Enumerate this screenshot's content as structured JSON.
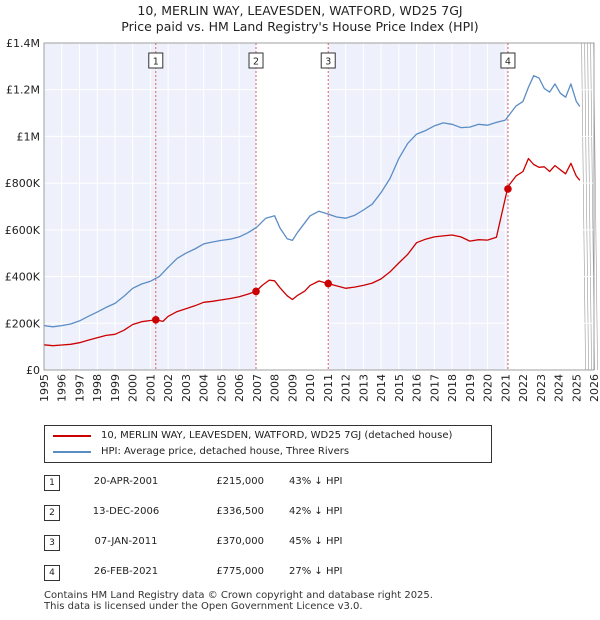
{
  "chart_data": {
    "type": "line",
    "title": "10, MERLIN WAY, LEAVESDEN, WATFORD, WD25 7GJ",
    "subtitle": "Price paid vs. HM Land Registry's House Price Index (HPI)",
    "xlabel": "",
    "ylabel": "",
    "xlim": [
      1995,
      2026
    ],
    "ylim": [
      0,
      1400000
    ],
    "y_ticks": [
      0,
      200000,
      400000,
      600000,
      800000,
      1000000,
      1200000,
      1400000
    ],
    "y_tick_labels": [
      "£0",
      "£200K",
      "£400K",
      "£600K",
      "£800K",
      "£1M",
      "£1.2M",
      "£1.4M"
    ],
    "x_ticks": [
      "1995",
      "1996",
      "1997",
      "1998",
      "1999",
      "2000",
      "2001",
      "2002",
      "2003",
      "2004",
      "2005",
      "2006",
      "2007",
      "2008",
      "2009",
      "2010",
      "2011",
      "2012",
      "2013",
      "2014",
      "2015",
      "2016",
      "2017",
      "2018",
      "2019",
      "2020",
      "2021",
      "2022",
      "2023",
      "2024",
      "2025",
      "2026"
    ],
    "grid": true,
    "series": [
      {
        "name": "10, MERLIN WAY, LEAVESDEN, WATFORD, WD25 7GJ (detached house)",
        "color": "#cc0000",
        "x": [
          1995,
          1995.5,
          1996,
          1996.5,
          1997,
          1997.5,
          1998,
          1998.5,
          1999,
          1999.5,
          2000,
          2000.5,
          2001,
          2001.3,
          2001.7,
          2002,
          2002.5,
          2003,
          2003.5,
          2004,
          2004.5,
          2005,
          2005.5,
          2006,
          2006.5,
          2006.95,
          2007.3,
          2007.7,
          2008,
          2008.3,
          2008.7,
          2009,
          2009.3,
          2009.7,
          2010,
          2010.5,
          2011.02,
          2011.5,
          2012,
          2012.5,
          2013,
          2013.5,
          2014,
          2014.5,
          2015,
          2015.5,
          2016,
          2016.5,
          2017,
          2017.5,
          2018,
          2018.5,
          2019,
          2019.5,
          2020,
          2020.5,
          2021.12,
          2021.2,
          2021.6,
          2022,
          2022.3,
          2022.6,
          2022.9,
          2023.2,
          2023.5,
          2023.8,
          2024.1,
          2024.4,
          2024.7,
          2025,
          2025.2
        ],
        "values": [
          108000,
          104000,
          107000,
          110000,
          117000,
          128000,
          138000,
          148000,
          153000,
          170000,
          195000,
          207000,
          212000,
          215000,
          208000,
          230000,
          250000,
          262000,
          275000,
          290000,
          294000,
          300000,
          306000,
          314000,
          325000,
          336500,
          362000,
          385000,
          382000,
          352000,
          318000,
          302000,
          320000,
          338000,
          362000,
          381000,
          370000,
          360000,
          350000,
          355000,
          362000,
          372000,
          390000,
          420000,
          458000,
          495000,
          545000,
          560000,
          570000,
          574000,
          578000,
          570000,
          552000,
          558000,
          556000,
          568000,
          775000,
          790000,
          830000,
          850000,
          905000,
          880000,
          868000,
          870000,
          850000,
          875000,
          857000,
          840000,
          885000,
          830000,
          812000
        ]
      },
      {
        "name": "HPI: Average price, detached house, Three Rivers",
        "color": "#5b8dc5",
        "x": [
          1995,
          1995.5,
          1996,
          1996.5,
          1997,
          1997.5,
          1998,
          1998.5,
          1999,
          1999.5,
          2000,
          2000.5,
          2001,
          2001.5,
          2002,
          2002.5,
          2003,
          2003.5,
          2004,
          2004.5,
          2005,
          2005.5,
          2006,
          2006.5,
          2007,
          2007.5,
          2008,
          2008.3,
          2008.7,
          2009,
          2009.3,
          2009.7,
          2010,
          2010.5,
          2011,
          2011.5,
          2012,
          2012.5,
          2013,
          2013.5,
          2014,
          2014.5,
          2015,
          2015.5,
          2016,
          2016.5,
          2017,
          2017.5,
          2018,
          2018.5,
          2019,
          2019.5,
          2020,
          2020.5,
          2021,
          2021.3,
          2021.6,
          2022,
          2022.3,
          2022.6,
          2022.9,
          2023.2,
          2023.5,
          2023.8,
          2024.1,
          2024.4,
          2024.7,
          2025,
          2025.2
        ],
        "values": [
          190000,
          185000,
          190000,
          197000,
          210000,
          230000,
          248000,
          268000,
          285000,
          315000,
          350000,
          368000,
          380000,
          400000,
          440000,
          478000,
          500000,
          518000,
          540000,
          548000,
          555000,
          560000,
          570000,
          588000,
          612000,
          650000,
          660000,
          608000,
          562000,
          555000,
          590000,
          630000,
          660000,
          680000,
          668000,
          655000,
          650000,
          662000,
          685000,
          710000,
          760000,
          820000,
          905000,
          970000,
          1010000,
          1025000,
          1045000,
          1058000,
          1052000,
          1038000,
          1040000,
          1052000,
          1048000,
          1060000,
          1070000,
          1100000,
          1130000,
          1150000,
          1210000,
          1260000,
          1250000,
          1205000,
          1190000,
          1225000,
          1185000,
          1168000,
          1225000,
          1150000,
          1128000
        ]
      }
    ],
    "transactions": [
      {
        "id": "1",
        "x": 2001.3,
        "value": 215000
      },
      {
        "id": "2",
        "x": 2006.95,
        "value": 336500
      },
      {
        "id": "3",
        "x": 2011.02,
        "value": 370000
      },
      {
        "id": "4",
        "x": 2021.15,
        "value": 775000
      }
    ]
  },
  "legend": {
    "property": "10, MERLIN WAY, LEAVESDEN, WATFORD, WD25 7GJ (detached house)",
    "hpi": "HPI: Average price, detached house, Three Rivers"
  },
  "table": [
    {
      "num": "1",
      "date": "20-APR-2001",
      "price": "£215,000",
      "hpi": "43% ↓ HPI"
    },
    {
      "num": "2",
      "date": "13-DEC-2006",
      "price": "£336,500",
      "hpi": "42% ↓ HPI"
    },
    {
      "num": "3",
      "date": "07-JAN-2011",
      "price": "£370,000",
      "hpi": "45% ↓ HPI"
    },
    {
      "num": "4",
      "date": "26-FEB-2021",
      "price": "£775,000",
      "hpi": "27% ↓ HPI"
    }
  ],
  "footer": {
    "line1": "Contains HM Land Registry data © Crown copyright and database right 2025.",
    "line2": "This data is licensed under the Open Government Licence v3.0."
  }
}
